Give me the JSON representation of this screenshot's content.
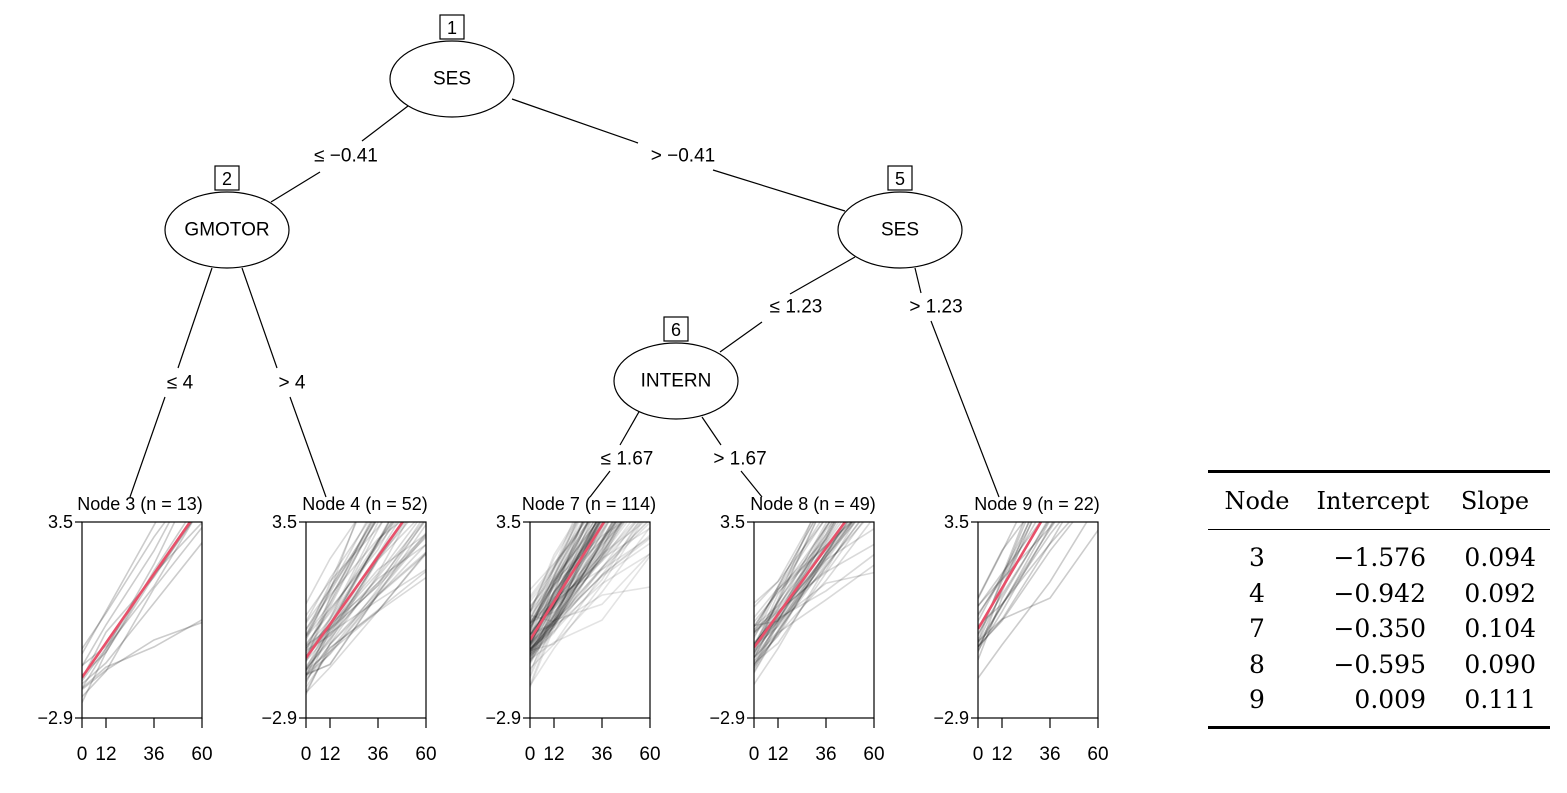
{
  "tree": {
    "inner_nodes": [
      {
        "id": "1",
        "label": "SES"
      },
      {
        "id": "2",
        "label": "GMOTOR"
      },
      {
        "id": "5",
        "label": "SES"
      },
      {
        "id": "6",
        "label": "INTERN"
      }
    ],
    "edges": [
      {
        "from": "1",
        "to": "2",
        "label": "≤ −0.41"
      },
      {
        "from": "1",
        "to": "5",
        "label": "> −0.41"
      },
      {
        "from": "2",
        "to": "3",
        "label": "≤ 4"
      },
      {
        "from": "2",
        "to": "4",
        "label": "> 4"
      },
      {
        "from": "5",
        "to": "6",
        "label": "≤ 1.23"
      },
      {
        "from": "5",
        "to": "9",
        "label": "> 1.23"
      },
      {
        "from": "6",
        "to": "7",
        "label": "≤ 1.67"
      },
      {
        "from": "6",
        "to": "8",
        "label": "> 1.67"
      }
    ],
    "terminal_nodes": [
      {
        "id": "3",
        "title": "Node 3 (n = 13)",
        "n": 13,
        "intercept": -1.576,
        "slope": 0.094
      },
      {
        "id": "4",
        "title": "Node 4 (n = 52)",
        "n": 52,
        "intercept": -0.942,
        "slope": 0.092
      },
      {
        "id": "7",
        "title": "Node 7 (n = 114)",
        "n": 114,
        "intercept": -0.35,
        "slope": 0.104
      },
      {
        "id": "8",
        "title": "Node 8 (n = 49)",
        "n": 49,
        "intercept": -0.595,
        "slope": 0.09
      },
      {
        "id": "9",
        "title": "Node 9 (n = 22)",
        "n": 22,
        "intercept": 0.009,
        "slope": 0.111
      }
    ]
  },
  "chart_data": {
    "type": "line",
    "x_ticks": [
      0,
      12,
      36,
      60
    ],
    "x_tick_labels": [
      "0",
      "12",
      "36",
      "60"
    ],
    "ylim": [
      -2.9,
      3.5
    ],
    "y_tick_labels": [
      "3.5",
      "−2.9"
    ],
    "fit_line_color": "#e8506a",
    "trajectory_color": "#000000"
  },
  "table": {
    "headers": [
      "Node",
      "Intercept",
      "Slope"
    ],
    "rows": [
      [
        "3",
        "−1.576",
        "0.094"
      ],
      [
        "4",
        "−0.942",
        "0.092"
      ],
      [
        "7",
        "−0.350",
        "0.104"
      ],
      [
        "8",
        "−0.595",
        "0.090"
      ],
      [
        "9",
        "0.009",
        "0.111"
      ]
    ]
  }
}
